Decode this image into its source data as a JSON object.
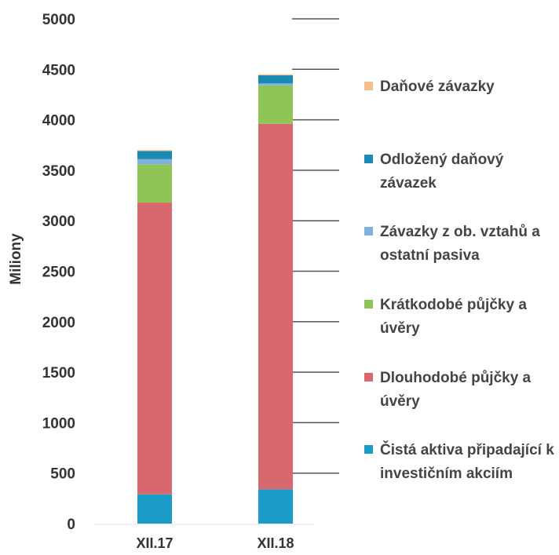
{
  "chart_data": {
    "type": "bar",
    "stacked": true,
    "categories": [
      "XII.17",
      "XII.18"
    ],
    "ylabel": "Miliony",
    "ylim": [
      0,
      5000
    ],
    "yticks": [
      "0",
      "500",
      "1000",
      "1500",
      "2000",
      "2500",
      "3000",
      "3500",
      "4000",
      "4500",
      "5000"
    ],
    "legend_position": "right",
    "series": [
      {
        "name": "Čistá aktiva připadající k investičním akciím",
        "color": "#1a9bc8",
        "values": [
          290,
          340
        ]
      },
      {
        "name": "Dlouhodobé půjčky a úvěry",
        "color": "#d8686e",
        "values": [
          2890,
          3620
        ]
      },
      {
        "name": "Krátkodobé půjčky a úvěry",
        "color": "#8fc556",
        "values": [
          380,
          380
        ]
      },
      {
        "name": "Závazky z ob. vztahů a ostatní pasiva",
        "color": "#7fb0e0",
        "values": [
          50,
          20
        ]
      },
      {
        "name": "Odložený daňový závazek",
        "color": "#1a8ab4",
        "values": [
          80,
          80
        ]
      },
      {
        "name": "Daňové závazky",
        "color": "#f6c08a",
        "values": [
          10,
          10
        ]
      }
    ]
  }
}
